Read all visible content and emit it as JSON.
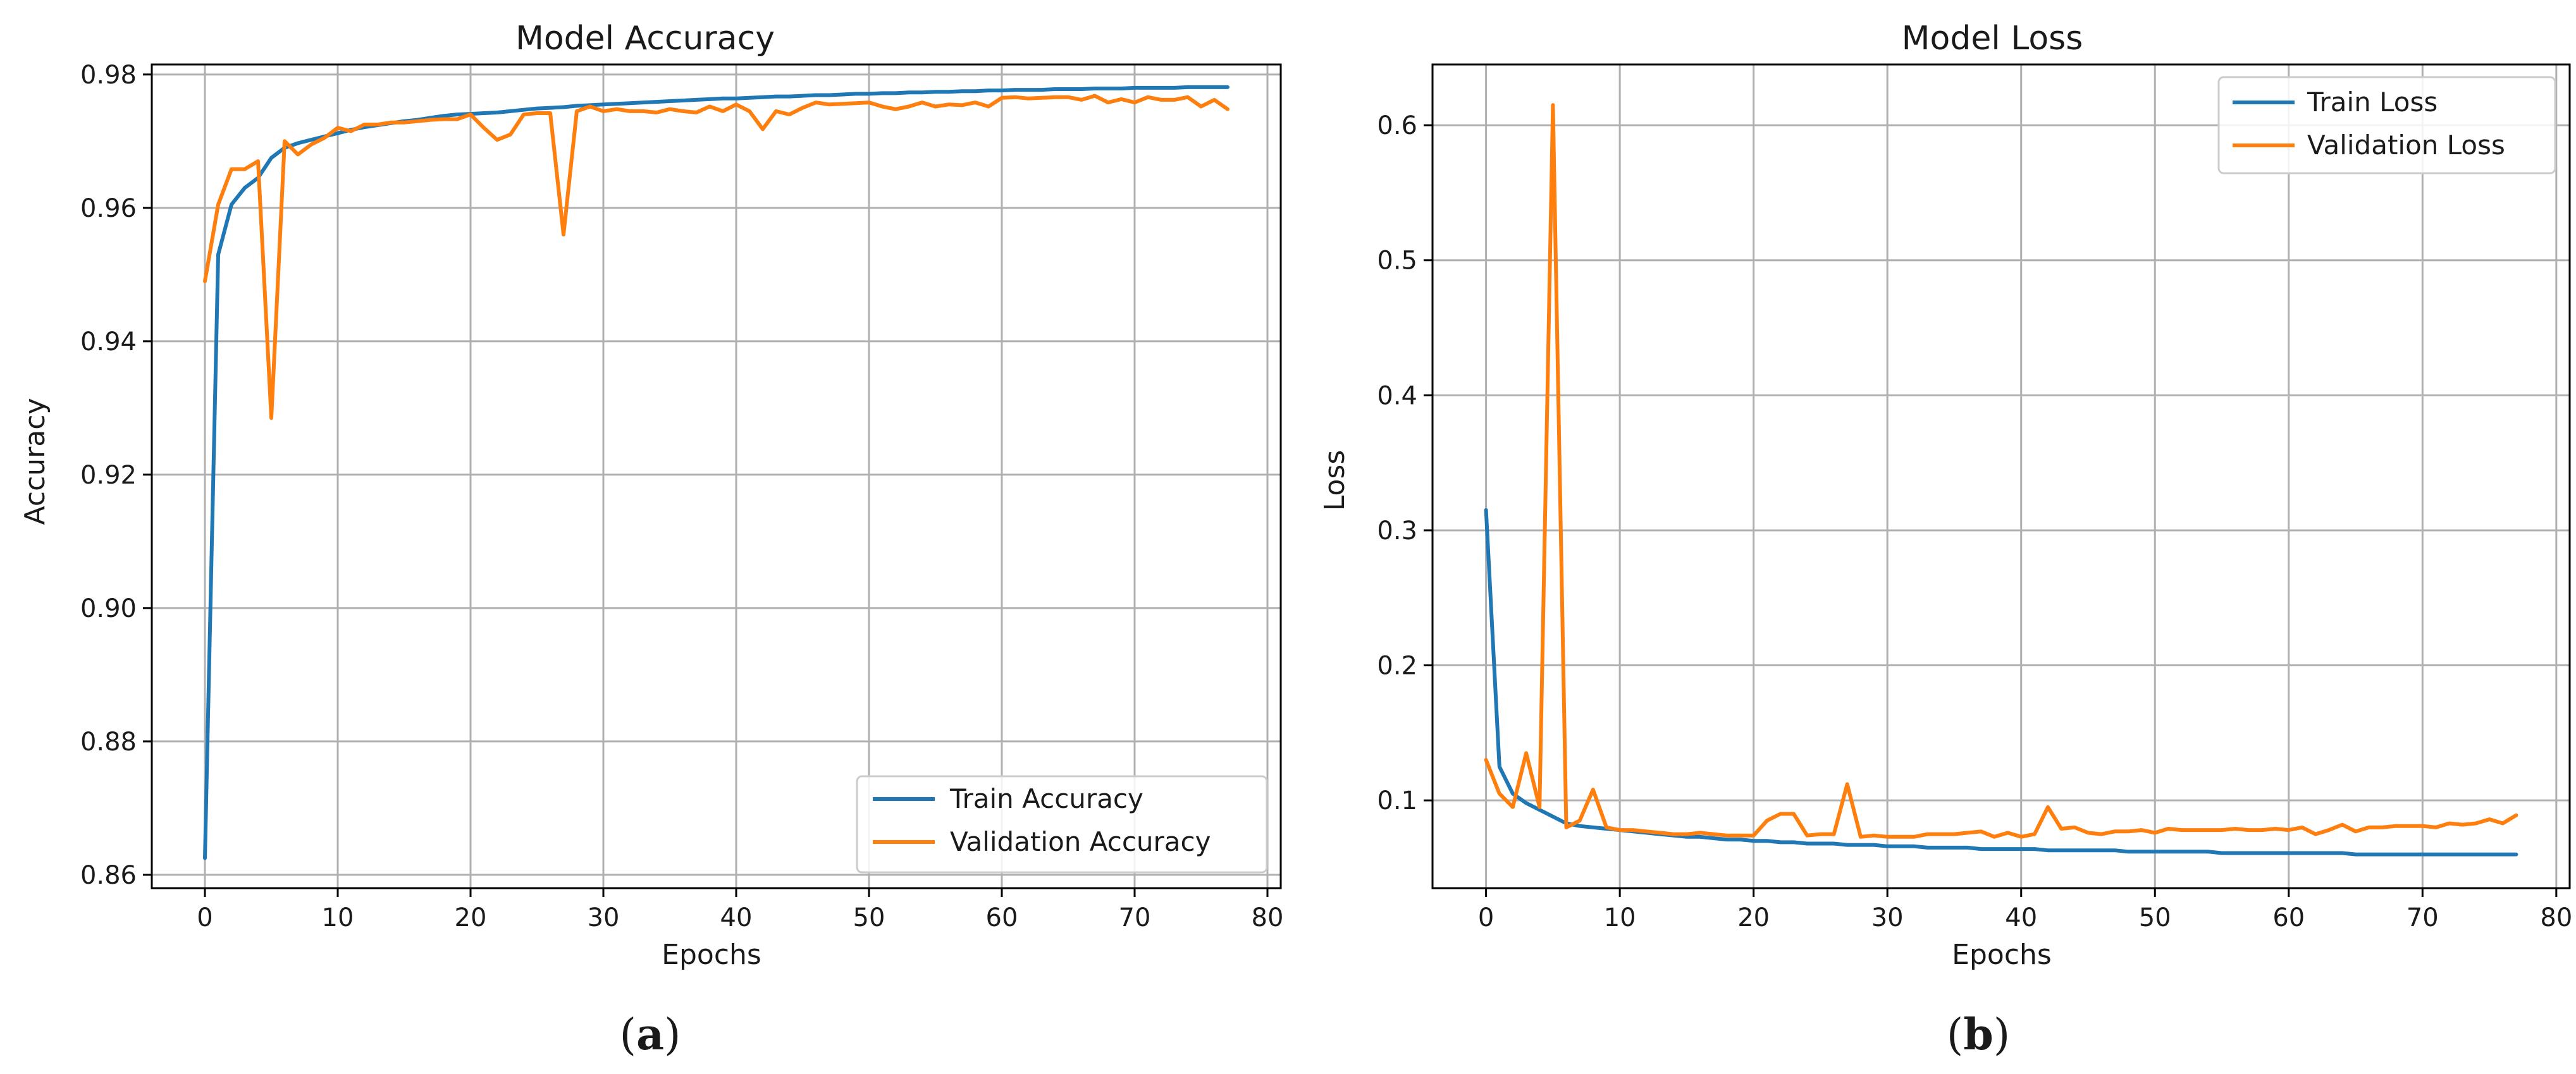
{
  "colors": {
    "train": "#1f77b4",
    "validation": "#ff7f0e"
  },
  "chart_data": [
    {
      "type": "line",
      "title": "Model Accuracy",
      "xlabel": "Epochs",
      "ylabel": "Accuracy",
      "xlim": [
        -4,
        81
      ],
      "ylim": [
        0.858,
        0.9815
      ],
      "xticks": [
        0,
        10,
        20,
        30,
        40,
        50,
        60,
        70,
        80
      ],
      "yticks": [
        0.86,
        0.88,
        0.9,
        0.92,
        0.94,
        0.96,
        0.98
      ],
      "ytick_labels": [
        "0.86",
        "0.88",
        "0.90",
        "0.92",
        "0.94",
        "0.96",
        "0.98"
      ],
      "grid": true,
      "legend_position": "lower-right",
      "caption": "a",
      "series": [
        {
          "name": "Train Accuracy",
          "color_key": "train",
          "values": [
            0.8625,
            0.953,
            0.9605,
            0.963,
            0.9645,
            0.9675,
            0.969,
            0.9697,
            0.9702,
            0.9707,
            0.9712,
            0.9717,
            0.9721,
            0.9724,
            0.9727,
            0.973,
            0.9732,
            0.9735,
            0.9738,
            0.974,
            0.9741,
            0.9742,
            0.9743,
            0.9745,
            0.9747,
            0.9749,
            0.975,
            0.9751,
            0.9753,
            0.9754,
            0.9755,
            0.9756,
            0.9757,
            0.9758,
            0.9759,
            0.976,
            0.9761,
            0.9762,
            0.9763,
            0.9764,
            0.9764,
            0.9765,
            0.9766,
            0.9767,
            0.9767,
            0.9768,
            0.9769,
            0.9769,
            0.977,
            0.9771,
            0.9771,
            0.9772,
            0.9772,
            0.9773,
            0.9773,
            0.9774,
            0.9774,
            0.9775,
            0.9775,
            0.9776,
            0.9776,
            0.9777,
            0.9777,
            0.9777,
            0.9778,
            0.9778,
            0.9778,
            0.9779,
            0.9779,
            0.9779,
            0.978,
            0.978,
            0.978,
            0.978,
            0.9781,
            0.9781,
            0.9781,
            0.9781
          ]
        },
        {
          "name": "Validation Accuracy",
          "color_key": "validation",
          "values": [
            0.949,
            0.9605,
            0.9658,
            0.9658,
            0.967,
            0.9285,
            0.97,
            0.968,
            0.9695,
            0.9705,
            0.972,
            0.9715,
            0.9725,
            0.9725,
            0.9728,
            0.9728,
            0.973,
            0.9732,
            0.9733,
            0.9733,
            0.974,
            0.972,
            0.9702,
            0.971,
            0.974,
            0.9742,
            0.9742,
            0.956,
            0.9745,
            0.9752,
            0.9745,
            0.9748,
            0.9745,
            0.9745,
            0.9743,
            0.9748,
            0.9745,
            0.9743,
            0.9752,
            0.9745,
            0.9755,
            0.9745,
            0.9718,
            0.9745,
            0.974,
            0.975,
            0.9758,
            0.9755,
            0.9756,
            0.9757,
            0.9758,
            0.9752,
            0.9748,
            0.9752,
            0.9758,
            0.9752,
            0.9755,
            0.9754,
            0.9758,
            0.9752,
            0.9765,
            0.9766,
            0.9764,
            0.9765,
            0.9766,
            0.9766,
            0.9762,
            0.9768,
            0.9758,
            0.9763,
            0.9758,
            0.9766,
            0.9762,
            0.9762,
            0.9766,
            0.9752,
            0.9762,
            0.9748
          ]
        }
      ]
    },
    {
      "type": "line",
      "title": "Model Loss",
      "xlabel": "Epochs",
      "ylabel": "Loss",
      "xlim": [
        -4,
        81
      ],
      "ylim": [
        0.035,
        0.645
      ],
      "xticks": [
        0,
        10,
        20,
        30,
        40,
        50,
        60,
        70,
        80
      ],
      "yticks": [
        0.1,
        0.2,
        0.3,
        0.4,
        0.5,
        0.6
      ],
      "ytick_labels": [
        "0.1",
        "0.2",
        "0.3",
        "0.4",
        "0.5",
        "0.6"
      ],
      "grid": true,
      "legend_position": "upper-right",
      "caption": "b",
      "series": [
        {
          "name": "Train Loss",
          "color_key": "train",
          "values": [
            0.315,
            0.125,
            0.105,
            0.098,
            0.093,
            0.088,
            0.083,
            0.081,
            0.08,
            0.079,
            0.078,
            0.077,
            0.076,
            0.075,
            0.074,
            0.073,
            0.073,
            0.072,
            0.071,
            0.071,
            0.07,
            0.07,
            0.069,
            0.069,
            0.068,
            0.068,
            0.068,
            0.067,
            0.067,
            0.067,
            0.066,
            0.066,
            0.066,
            0.065,
            0.065,
            0.065,
            0.065,
            0.064,
            0.064,
            0.064,
            0.064,
            0.064,
            0.063,
            0.063,
            0.063,
            0.063,
            0.063,
            0.063,
            0.062,
            0.062,
            0.062,
            0.062,
            0.062,
            0.062,
            0.062,
            0.061,
            0.061,
            0.061,
            0.061,
            0.061,
            0.061,
            0.061,
            0.061,
            0.061,
            0.061,
            0.06,
            0.06,
            0.06,
            0.06,
            0.06,
            0.06,
            0.06,
            0.06,
            0.06,
            0.06,
            0.06,
            0.06,
            0.06
          ]
        },
        {
          "name": "Validation Loss",
          "color_key": "validation",
          "values": [
            0.13,
            0.105,
            0.095,
            0.135,
            0.095,
            0.615,
            0.08,
            0.085,
            0.108,
            0.08,
            0.078,
            0.078,
            0.077,
            0.076,
            0.075,
            0.075,
            0.076,
            0.075,
            0.074,
            0.074,
            0.074,
            0.085,
            0.09,
            0.09,
            0.074,
            0.075,
            0.075,
            0.112,
            0.073,
            0.074,
            0.073,
            0.073,
            0.073,
            0.075,
            0.075,
            0.075,
            0.076,
            0.077,
            0.073,
            0.076,
            0.073,
            0.075,
            0.095,
            0.079,
            0.08,
            0.076,
            0.075,
            0.077,
            0.077,
            0.078,
            0.076,
            0.079,
            0.078,
            0.078,
            0.078,
            0.078,
            0.079,
            0.078,
            0.078,
            0.079,
            0.078,
            0.08,
            0.075,
            0.078,
            0.082,
            0.077,
            0.08,
            0.08,
            0.081,
            0.081,
            0.081,
            0.08,
            0.083,
            0.082,
            0.083,
            0.086,
            0.083,
            0.089
          ]
        }
      ]
    }
  ]
}
